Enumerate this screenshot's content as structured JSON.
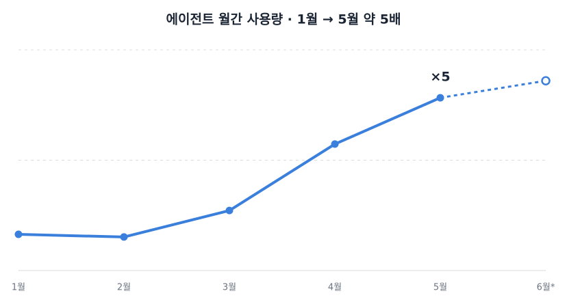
{
  "chart_data": {
    "type": "line",
    "title": "에이전트 월간 사용량 · 1월 → 5월 약 5배",
    "categories": [
      "1월",
      "2월",
      "3월",
      "4월",
      "5월",
      "6월*"
    ],
    "series": [
      {
        "color": "#3a7fdc",
        "style": "solid",
        "values": [
          16.4,
          15.2,
          27.2,
          57.3,
          78.3,
          null
        ]
      },
      {
        "color": "#3a7fdc",
        "style": "dashed",
        "values": [
          null,
          null,
          null,
          null,
          78.3,
          86
        ]
      }
    ],
    "ylim": [
      0,
      100
    ],
    "yticks": [
      0,
      50,
      100
    ],
    "grid": true,
    "annotations": [
      {
        "text": "×5",
        "index": 4
      }
    ]
  }
}
